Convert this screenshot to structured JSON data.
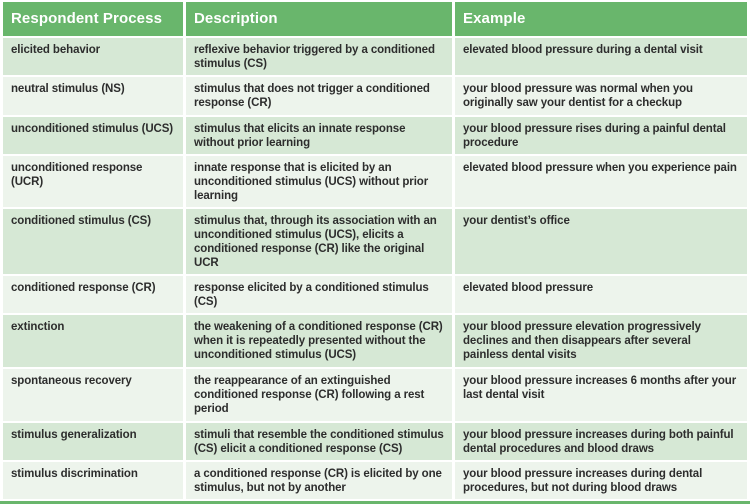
{
  "table": {
    "headers": [
      "Respondent Process",
      "Description",
      "Example"
    ],
    "rows": [
      {
        "process": "elicited behavior",
        "description": "reflexive behavior triggered by a conditioned stimulus (CS)",
        "example": "elevated blood pressure during a dental visit"
      },
      {
        "process": "neutral stimulus (NS)",
        "description": "stimulus that does not trigger a conditioned response (CR)",
        "example": "your blood pressure was normal when you originally saw your dentist for a checkup"
      },
      {
        "process": "unconditioned stimulus (UCS)",
        "description": "stimulus that elicits an innate response without prior learning",
        "example": "your blood pressure rises during a painful dental procedure"
      },
      {
        "process": "unconditioned response (UCR)",
        "description": "innate response that is elicited by an unconditioned stimulus (UCS) without prior learning",
        "example": "elevated blood pressure when you experience pain"
      },
      {
        "process": "conditioned stimulus (CS)",
        "description": "stimulus that, through its association with an unconditioned stimulus (UCS), elicits a conditioned response (CR) like the original UCR",
        "example": "your dentist’s office"
      },
      {
        "process": "conditioned response (CR)",
        "description": "response elicited by a conditioned stimulus (CS)",
        "example": "elevated blood pressure"
      },
      {
        "process": "extinction",
        "description": "the weakening of a conditioned response (CR) when it is repeatedly presented without the unconditioned stimulus (UCS)",
        "example": "your blood pressure elevation progressively declines and then disappears after several painless dental visits"
      },
      {
        "process": "spontaneous recovery",
        "description": "the reappearance of an extinguished conditioned response (CR) following a rest period",
        "example": "your blood pressure increases 6 months after your last dental visit"
      },
      {
        "process": "stimulus generalization",
        "description": "stimuli that resemble the conditioned stimulus (CS) elicit a conditioned response (CS)",
        "example": "your blood pressure increases during both painful dental procedures and blood draws"
      },
      {
        "process": "stimulus discrimination",
        "description": "a conditioned response (CR) is elicited by one stimulus, but not by another",
        "example": "your blood pressure increases during dental procedures, but not during blood draws"
      }
    ]
  },
  "colors": {
    "header_green": "#69b66c",
    "band_dark_green": "#d6e8d5",
    "band_light_green": "#edf4ec",
    "header_text": "#ffffff",
    "body_text": "#2d2d2d",
    "separator": "#ffffff"
  }
}
